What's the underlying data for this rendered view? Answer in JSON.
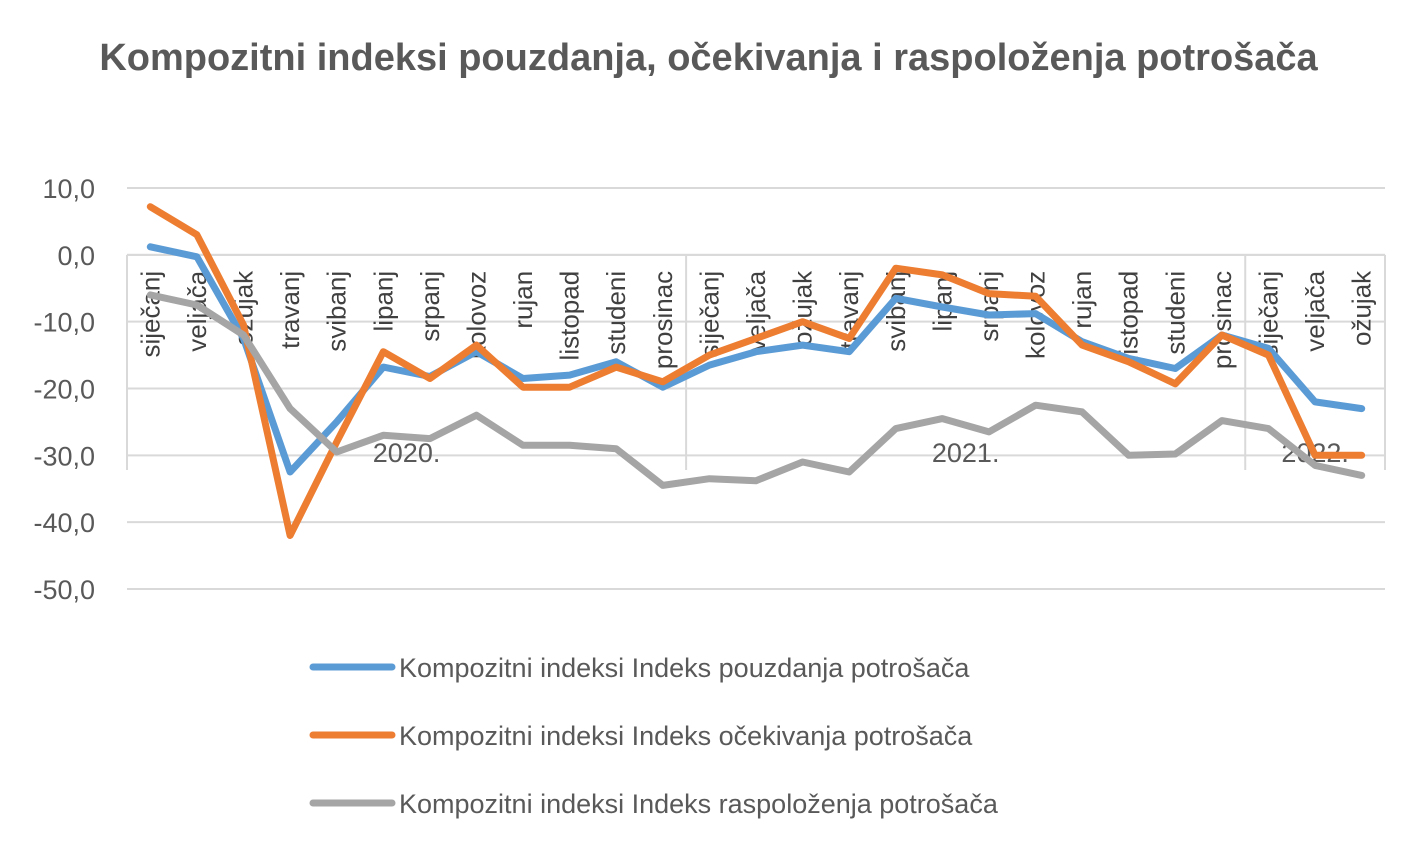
{
  "chart_data": {
    "type": "line",
    "title": "Kompozitni indeksi pouzdanja, očekivanja i raspoloženja potrošača",
    "ylim": [
      -50,
      10
    ],
    "yticks": [
      "10,0",
      "0,0",
      "-10,0",
      "-20,0",
      "-30,0",
      "-40,0",
      "-50,0"
    ],
    "ytick_values": [
      10,
      0,
      -10,
      -20,
      -30,
      -40,
      -50
    ],
    "grid": true,
    "legend_position": "bottom",
    "categories": [
      "siječanj",
      "veljača",
      "ožujak",
      "travanj",
      "svibanj",
      "lipanj",
      "srpanj",
      "kolovoz",
      "rujan",
      "listopad",
      "studeni",
      "prosinac",
      "siječanj",
      "veljača",
      "ožujak",
      "travanj",
      "svibanj",
      "lipanj",
      "srpanj",
      "kolovoz",
      "rujan",
      "listopad",
      "studeni",
      "prosinac",
      "siječanj",
      "veljača",
      "ožujak"
    ],
    "year_groups": [
      {
        "label": "2020.",
        "count": 12
      },
      {
        "label": "2021.",
        "count": 12
      },
      {
        "label": "2022.",
        "count": 3
      }
    ],
    "series": [
      {
        "name": "Kompozitni indeksi Indeks pouzdanja potrošača",
        "color": "#5B9BD5",
        "values": [
          1.2,
          -0.3,
          -12.5,
          -32.5,
          -25.0,
          -16.8,
          -18.2,
          -14.5,
          -18.5,
          -18.0,
          -16.0,
          -19.8,
          -16.5,
          -14.5,
          -13.5,
          -14.5,
          -6.5,
          -7.8,
          -9.0,
          -8.8,
          -13.0,
          -15.5,
          -17.0,
          -12.0,
          -14.0,
          -22.0,
          -23.0
        ]
      },
      {
        "name": "Kompozitni indeksi Indeks očekivanja potrošača",
        "color": "#ED7D31",
        "values": [
          7.2,
          3.0,
          -10.5,
          -42.0,
          -28.0,
          -14.5,
          -18.5,
          -13.5,
          -19.8,
          -19.8,
          -16.8,
          -19.0,
          -15.0,
          -12.5,
          -10.0,
          -12.5,
          -2.0,
          -3.0,
          -5.8,
          -6.2,
          -13.5,
          -16.0,
          -19.3,
          -12.0,
          -15.0,
          -30.0,
          -30.0
        ]
      },
      {
        "name": "Kompozitni indeksi Indeks raspoloženja potrošača",
        "color": "#A5A5A5",
        "values": [
          -6.0,
          -7.5,
          -12.0,
          -23.0,
          -29.5,
          -27.0,
          -27.5,
          -24.0,
          -28.5,
          -28.5,
          -29.0,
          -34.5,
          -33.5,
          -33.8,
          -31.0,
          -32.5,
          -26.0,
          -24.5,
          -26.5,
          -22.5,
          -23.5,
          -30.0,
          -29.8,
          -24.8,
          -26.0,
          -31.5,
          -33.0
        ]
      }
    ]
  }
}
